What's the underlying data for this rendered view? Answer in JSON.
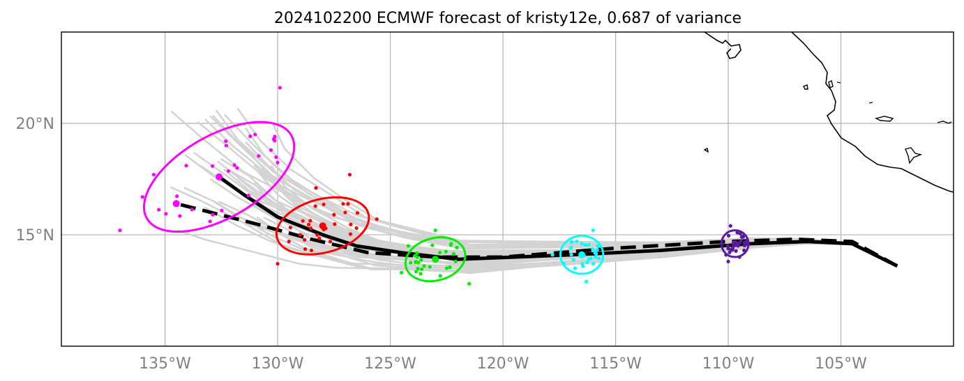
{
  "title": "2024102200 ECMWF forecast of kristy12e, 0.687 of variance",
  "axes": {
    "x_ticks": [
      {
        "value": -135,
        "label": "135°W"
      },
      {
        "value": -130,
        "label": "130°W"
      },
      {
        "value": -125,
        "label": "125°W"
      },
      {
        "value": -120,
        "label": "120°W"
      },
      {
        "value": -115,
        "label": "115°W"
      },
      {
        "value": -110,
        "label": "110°W"
      },
      {
        "value": -105,
        "label": "105°W"
      }
    ],
    "y_ticks": [
      {
        "value": 15,
        "label": "15°N"
      },
      {
        "value": 20,
        "label": "20°N"
      }
    ],
    "xlim": [
      -139.6,
      -100.0
    ],
    "ylim": [
      10.0,
      24.1
    ],
    "grid": true
  },
  "chart_data": {
    "type": "scatter",
    "title": "2024102200 ECMWF forecast of kristy12e, 0.687 of variance",
    "mean_track": [
      [
        -102.5,
        13.6
      ],
      [
        -104.5,
        14.6
      ],
      [
        -106.5,
        14.7
      ],
      [
        -109.0,
        14.6
      ],
      [
        -113.0,
        14.3
      ],
      [
        -117.0,
        14.1
      ],
      [
        -122.0,
        13.9
      ],
      [
        -124.5,
        14.2
      ],
      [
        -126.5,
        14.5
      ],
      [
        -128.0,
        15.0
      ],
      [
        -130.0,
        15.8
      ],
      [
        -131.5,
        16.8
      ],
      [
        -132.6,
        17.6
      ]
    ],
    "control_track": [
      [
        -102.5,
        13.6
      ],
      [
        -104.5,
        14.7
      ],
      [
        -107.0,
        14.8
      ],
      [
        -110.0,
        14.7
      ],
      [
        -115.0,
        14.4
      ],
      [
        -120.0,
        14.0
      ],
      [
        -123.0,
        14.0
      ],
      [
        -126.0,
        14.2
      ],
      [
        -128.5,
        14.8
      ],
      [
        -131.0,
        15.5
      ],
      [
        -134.5,
        16.4
      ]
    ],
    "forecast_groups": [
      {
        "color": "#5b1a9e",
        "center": [
          -109.7,
          14.6
        ],
        "ellipse": {
          "rx": 0.6,
          "ry": 0.6,
          "angle": 0
        },
        "points": [
          [
            -110.1,
            14.1
          ],
          [
            -109.4,
            14.9
          ],
          [
            -109.8,
            14.4
          ],
          [
            -109.3,
            14.3
          ],
          [
            -110.0,
            13.8
          ],
          [
            -109.6,
            15.1
          ],
          [
            -110.3,
            14.6
          ],
          [
            -109.2,
            14.7
          ],
          [
            -109.9,
            15.4
          ],
          [
            -109.5,
            14.0
          ]
        ]
      },
      {
        "color": "#00ffff",
        "center": [
          -116.5,
          14.1
        ],
        "ellipse": {
          "rx": 0.95,
          "ry": 0.85,
          "angle": 0
        },
        "points": [
          [
            -117.0,
            14.4
          ],
          [
            -116.2,
            13.9
          ],
          [
            -116.5,
            14.6
          ],
          [
            -115.9,
            14.0
          ],
          [
            -117.3,
            13.7
          ],
          [
            -116.0,
            15.2
          ],
          [
            -116.3,
            12.9
          ],
          [
            -117.8,
            14.1
          ],
          [
            -115.8,
            14.5
          ],
          [
            -116.8,
            13.5
          ]
        ]
      },
      {
        "color": "#00ee00",
        "center": [
          -123.0,
          13.9
        ],
        "ellipse": {
          "rx": 1.35,
          "ry": 0.95,
          "angle": 15
        },
        "points": [
          [
            -123.5,
            13.6
          ],
          [
            -122.8,
            14.2
          ],
          [
            -122.1,
            13.8
          ],
          [
            -124.2,
            14.5
          ],
          [
            -123.0,
            15.2
          ],
          [
            -121.5,
            12.8
          ],
          [
            -124.5,
            13.3
          ],
          [
            -122.5,
            13.5
          ],
          [
            -123.8,
            14.0
          ],
          [
            -122.3,
            14.6
          ]
        ]
      },
      {
        "color": "#ff0000",
        "center": [
          -128.0,
          15.4
        ],
        "ellipse": {
          "rx": 2.1,
          "ry": 1.2,
          "angle": 15
        },
        "points": [
          [
            -127.5,
            15.9
          ],
          [
            -129.0,
            15.0
          ],
          [
            -126.8,
            17.7
          ],
          [
            -130.0,
            13.7
          ],
          [
            -128.5,
            14.3
          ],
          [
            -126.5,
            15.3
          ],
          [
            -129.5,
            14.7
          ],
          [
            -127.0,
            16.0
          ],
          [
            -125.6,
            15.7
          ],
          [
            -128.3,
            17.1
          ]
        ]
      },
      {
        "color": "#ff00ff",
        "center": [
          -132.6,
          17.6
        ],
        "ellipse": {
          "rx": 3.7,
          "ry": 1.85,
          "angle": 30
        },
        "points": [
          [
            -134.5,
            16.4
          ],
          [
            -132.3,
            19.2
          ],
          [
            -131.0,
            19.5
          ],
          [
            -129.9,
            21.6
          ],
          [
            -136.0,
            16.7
          ],
          [
            -137.0,
            15.2
          ],
          [
            -131.8,
            18.0
          ],
          [
            -133.0,
            15.6
          ],
          [
            -130.3,
            18.8
          ],
          [
            -135.5,
            17.7
          ]
        ]
      }
    ]
  }
}
